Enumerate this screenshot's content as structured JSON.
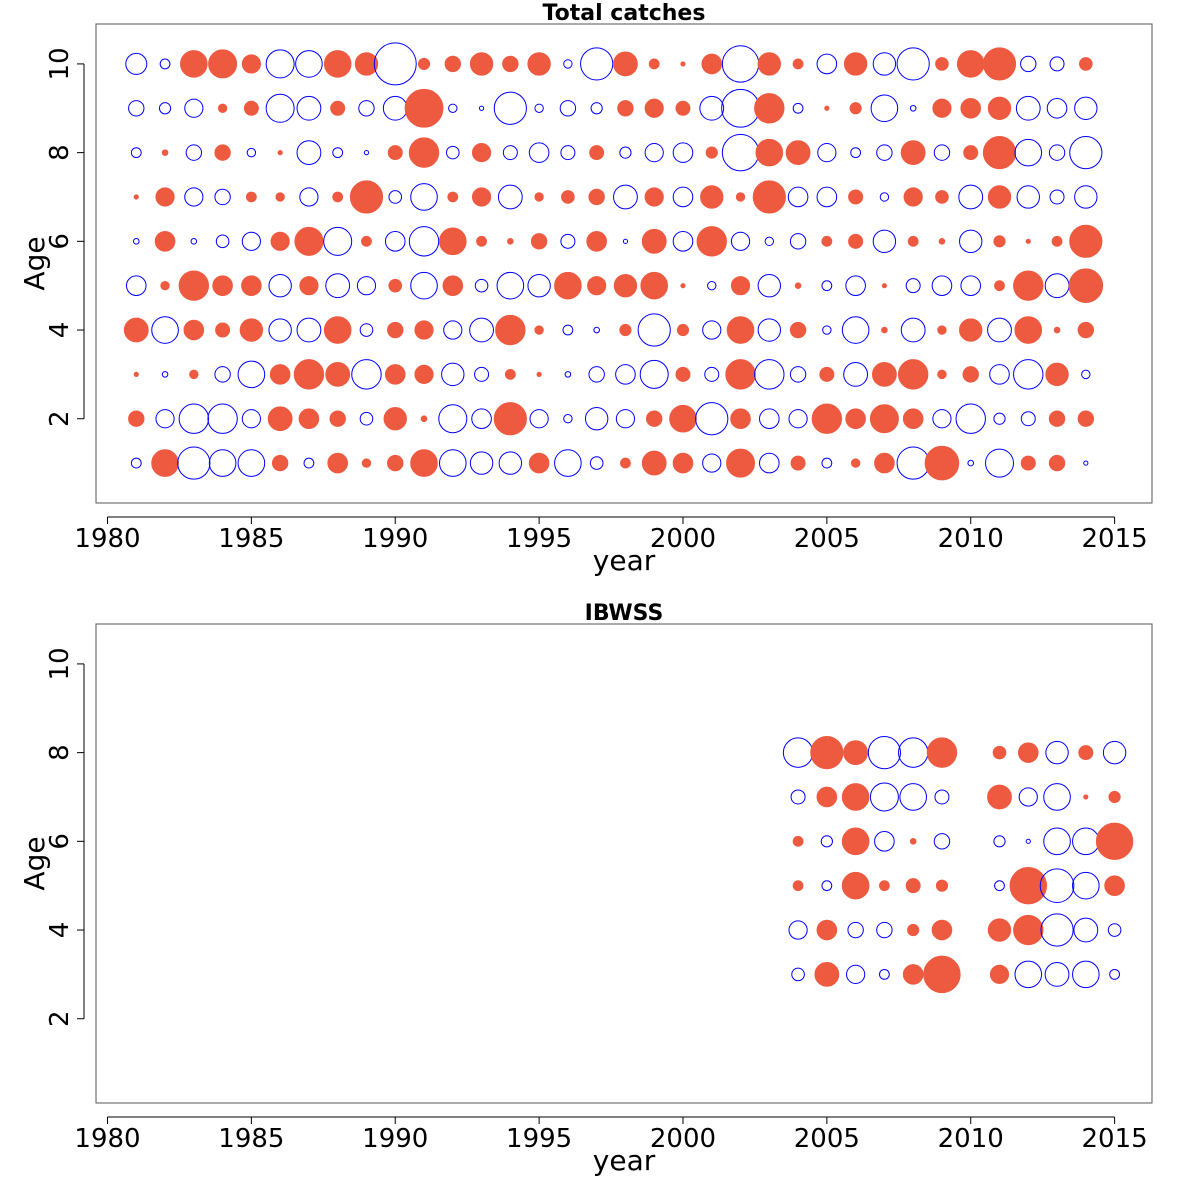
{
  "chart_data": [
    {
      "type": "bubble",
      "title": "Total catches",
      "x_label": "year",
      "y_label": "Age",
      "x": [
        1981,
        1982,
        1983,
        1984,
        1985,
        1986,
        1987,
        1988,
        1989,
        1990,
        1991,
        1992,
        1993,
        1994,
        1995,
        1996,
        1997,
        1998,
        1999,
        2000,
        2001,
        2002,
        2003,
        2004,
        2005,
        2006,
        2007,
        2008,
        2009,
        2010,
        2011,
        2012,
        2013,
        2014
      ],
      "y": [
        10,
        9,
        8,
        7,
        6,
        5,
        4,
        3,
        2,
        1
      ],
      "values": [
        [
          -1.5,
          -0.7,
          1.9,
          2.0,
          1.3,
          -2.0,
          -1.9,
          1.9,
          1.6,
          -3.0,
          0.8,
          1.1,
          1.6,
          1.1,
          1.6,
          -0.6,
          -2.3,
          1.7,
          0.7,
          0.3,
          1.4,
          -2.6,
          1.6,
          0.7,
          -1.4,
          1.6,
          -1.6,
          -2.3,
          0.9,
          1.9,
          2.3,
          -1.1,
          -1.0,
          0.9
        ],
        [
          -1.1,
          -0.8,
          -1.3,
          0.6,
          1.0,
          -2.0,
          -1.7,
          1.0,
          -1.1,
          -1.7,
          2.7,
          -0.6,
          -0.3,
          -2.3,
          -0.6,
          -1.1,
          -0.8,
          1.1,
          1.3,
          1.0,
          -1.7,
          -2.7,
          2.1,
          -0.7,
          0.3,
          0.8,
          -1.9,
          -0.4,
          1.3,
          1.4,
          1.6,
          -1.7,
          -1.4,
          -1.6
        ],
        [
          -0.7,
          0.4,
          -1.1,
          1.1,
          -0.6,
          0.3,
          -1.7,
          -0.7,
          -0.3,
          1.0,
          2.1,
          -0.9,
          1.3,
          -1.0,
          -1.4,
          -1.0,
          1.0,
          -0.8,
          -1.3,
          -1.4,
          0.8,
          -2.6,
          1.9,
          1.7,
          -1.3,
          -0.7,
          -1.1,
          1.7,
          -1.1,
          1.0,
          2.3,
          -1.9,
          -1.1,
          -2.3
        ],
        [
          0.3,
          1.3,
          -1.3,
          -1.1,
          0.7,
          0.6,
          -1.3,
          0.7,
          2.3,
          -0.9,
          -1.9,
          0.7,
          1.3,
          -1.7,
          0.6,
          0.9,
          1.1,
          -1.7,
          1.3,
          -1.4,
          1.6,
          0.6,
          2.3,
          -1.4,
          -1.4,
          1.0,
          -0.6,
          1.3,
          0.9,
          -1.7,
          1.6,
          -1.6,
          -1.0,
          -1.6
        ],
        [
          -0.4,
          1.4,
          -0.4,
          -0.9,
          -1.3,
          1.3,
          2.0,
          -2.0,
          0.7,
          -1.4,
          -2.1,
          1.9,
          0.7,
          0.4,
          1.1,
          -1.0,
          1.4,
          -0.3,
          1.7,
          -1.4,
          2.1,
          -1.3,
          -0.6,
          -1.1,
          0.7,
          1.0,
          -1.6,
          0.7,
          0.4,
          -1.6,
          0.8,
          0.3,
          0.7,
          2.3
        ],
        [
          -1.4,
          0.6,
          2.1,
          1.4,
          1.4,
          -1.6,
          1.3,
          -1.7,
          -1.3,
          0.9,
          -1.9,
          1.4,
          -0.9,
          -1.9,
          -1.6,
          1.9,
          1.3,
          1.6,
          1.9,
          0.3,
          -0.6,
          1.3,
          -1.6,
          0.4,
          -0.7,
          -1.4,
          0.3,
          -1.0,
          -1.4,
          -1.4,
          0.7,
          2.1,
          -1.7,
          2.4
        ],
        [
          1.7,
          -1.9,
          1.4,
          1.0,
          1.6,
          -1.6,
          -1.7,
          1.9,
          -0.9,
          1.1,
          1.3,
          -1.3,
          -1.7,
          2.1,
          0.6,
          -0.7,
          -0.4,
          0.8,
          -2.3,
          0.8,
          -1.3,
          1.9,
          -1.6,
          1.1,
          -0.6,
          -1.9,
          0.4,
          -1.7,
          0.6,
          1.6,
          -1.7,
          1.9,
          0.4,
          1.1
        ],
        [
          0.3,
          -0.4,
          0.6,
          -1.1,
          -1.9,
          1.4,
          2.1,
          1.7,
          -2.1,
          1.4,
          1.3,
          -1.6,
          -1.0,
          0.7,
          0.3,
          -0.4,
          -1.1,
          -1.4,
          -2.0,
          1.0,
          -1.0,
          2.1,
          -2.1,
          -1.1,
          1.0,
          -1.7,
          1.7,
          2.1,
          0.6,
          1.1,
          -1.4,
          -2.1,
          1.6,
          -0.6
        ],
        [
          1.1,
          -1.3,
          -2.1,
          -2.1,
          -1.3,
          1.7,
          1.4,
          1.1,
          -0.9,
          1.6,
          0.4,
          -2.0,
          -1.4,
          2.3,
          -1.3,
          -0.6,
          -1.6,
          -1.3,
          1.1,
          1.9,
          -2.3,
          1.4,
          -1.4,
          -1.3,
          2.1,
          1.4,
          2.0,
          1.4,
          -1.3,
          -2.1,
          -0.8,
          -1.0,
          1.1,
          1.1
        ],
        [
          -0.7,
          1.9,
          -2.3,
          -1.9,
          -1.9,
          1.1,
          -0.7,
          1.4,
          0.6,
          1.1,
          1.9,
          -1.9,
          -1.6,
          -1.6,
          1.4,
          -1.9,
          -0.9,
          0.7,
          1.7,
          1.4,
          -1.3,
          2.0,
          -1.4,
          1.0,
          -0.7,
          0.6,
          1.4,
          -2.3,
          2.4,
          -0.4,
          -2.0,
          1.0,
          1.1,
          -0.3
        ]
      ],
      "positive_color": "#ee5a40",
      "negative_color": "#0000ff",
      "xlim": [
        1979.6,
        2016.3
      ],
      "ylim": [
        0.1,
        10.9
      ],
      "xticks": [
        1980,
        1985,
        1990,
        1995,
        2000,
        2005,
        2010,
        2015
      ],
      "yticks": [
        2,
        4,
        6,
        8,
        10
      ]
    },
    {
      "type": "bubble",
      "title": "IBWSS",
      "x_label": "year",
      "y_label": "Age",
      "x": [
        2004,
        2005,
        2006,
        2007,
        2008,
        2009,
        2011,
        2012,
        2013,
        2014,
        2015
      ],
      "y": [
        8,
        7,
        6,
        5,
        4,
        3
      ],
      "values": [
        [
          -2.1,
          2.3,
          1.7,
          -2.3,
          -2.1,
          2.1,
          0.9,
          1.4,
          -1.6,
          1.0,
          -1.6
        ],
        [
          -1.0,
          1.4,
          1.9,
          -2.0,
          -1.9,
          -1.0,
          1.7,
          -1.3,
          -1.9,
          0.3,
          0.8
        ],
        [
          0.7,
          -0.8,
          1.9,
          -1.4,
          0.4,
          -1.1,
          -0.8,
          -0.3,
          -1.9,
          -1.9,
          2.6
        ],
        [
          0.7,
          -0.7,
          1.9,
          0.7,
          1.0,
          0.8,
          -0.7,
          2.6,
          -2.4,
          -1.9,
          1.4
        ],
        [
          -1.3,
          1.4,
          -1.1,
          -1.1,
          0.8,
          1.4,
          1.6,
          2.1,
          -2.3,
          -1.7,
          -0.9
        ],
        [
          -0.9,
          1.7,
          -1.3,
          -0.7,
          1.4,
          2.6,
          1.3,
          -1.9,
          -1.7,
          -1.9,
          -0.7
        ]
      ],
      "positive_color": "#ee5a40",
      "negative_color": "#0000ff",
      "xlim": [
        1979.6,
        2016.3
      ],
      "ylim": [
        0.1,
        10.9
      ],
      "xticks": [
        1980,
        1985,
        1990,
        1995,
        2000,
        2005,
        2010,
        2015
      ],
      "yticks": [
        2,
        4,
        6,
        8,
        10
      ]
    }
  ]
}
